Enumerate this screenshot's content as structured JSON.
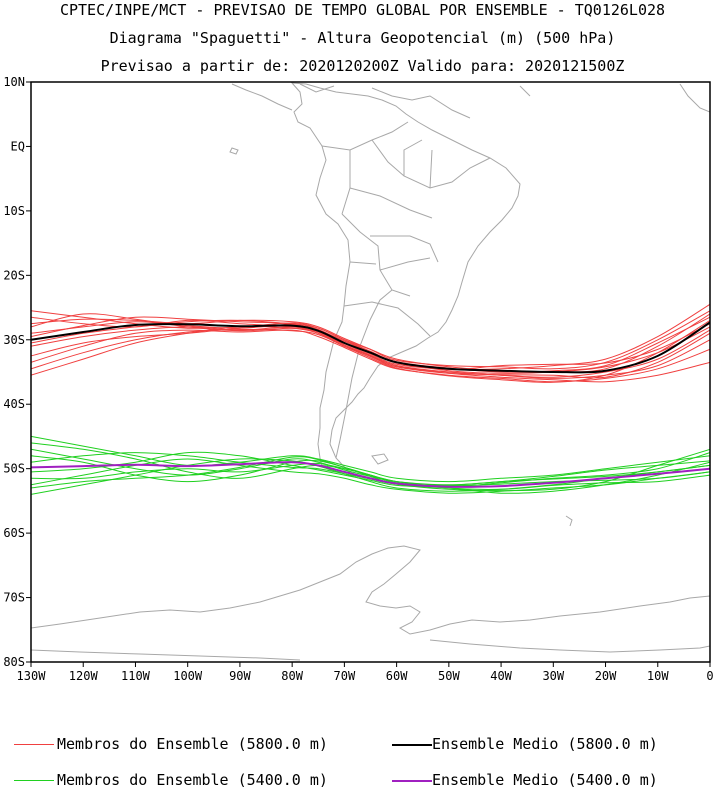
{
  "titles": {
    "line1": "CPTEC/INPE/MCT - PREVISAO DE TEMPO GLOBAL POR ENSEMBLE - TQ0126L028",
    "line2": "Diagrama \"Spaguetti\" - Altura Geopotencial (m) (500 hPa)",
    "line3": "Previsao a partir de: 2020120200Z  Valido para: 2020121500Z"
  },
  "legend": {
    "members_5800": "Membros do Ensemble (5800.0 m)",
    "mean_5800": "Ensemble Medio (5800.0 m)",
    "members_5400": "Membros do Ensemble (5400.0 m)",
    "mean_5400": "Ensemble Medio (5400.0 m)"
  },
  "colors": {
    "members_5800": "#f04040",
    "mean_5800": "#000000",
    "members_5400": "#20d020",
    "mean_5400": "#a020c0",
    "coast": "#a8a8a8",
    "frame": "#000000"
  },
  "chart_data": {
    "type": "line",
    "title": "Diagrama \"Spaguetti\" - Altura Geopotencial (m) (500 hPa)",
    "xlabel": "Longitude",
    "ylabel": "Latitude",
    "xlim": [
      -130,
      0
    ],
    "ylim": [
      -80,
      10
    ],
    "x_ticks": [
      -130,
      -120,
      -110,
      -100,
      -90,
      -80,
      -70,
      -60,
      -50,
      -40,
      -30,
      -20,
      -10,
      0
    ],
    "x_tick_labels": [
      "130W",
      "120W",
      "110W",
      "100W",
      "90W",
      "80W",
      "70W",
      "60W",
      "50W",
      "40W",
      "30W",
      "20W",
      "10W",
      "0"
    ],
    "y_ticks": [
      10,
      0,
      -10,
      -20,
      -30,
      -40,
      -50,
      -60,
      -70,
      -80
    ],
    "y_tick_labels": [
      "10N",
      "EQ",
      "10S",
      "20S",
      "30S",
      "40S",
      "50S",
      "60S",
      "70S",
      "80S"
    ],
    "x": [
      -130,
      -120,
      -110,
      -100,
      -90,
      -80,
      -75,
      -70,
      -65,
      -60,
      -50,
      -40,
      -30,
      -20,
      -10,
      0
    ],
    "series": [
      {
        "name": "Ensemble Medio (5800.0 m)",
        "group": "mean_5800",
        "values": [
          -30.0,
          -28.8,
          -27.7,
          -27.6,
          -27.9,
          -27.8,
          -28.6,
          -30.5,
          -32.0,
          -33.5,
          -34.5,
          -34.8,
          -35.0,
          -34.8,
          -32.5,
          -27.3
        ]
      },
      {
        "name": "Membro 1 (5800.0 m)",
        "group": "members_5800",
        "values": [
          -29.5,
          -27.8,
          -26.5,
          -26.8,
          -27.2,
          -27.5,
          -28.2,
          -30.0,
          -31.5,
          -33.0,
          -34.2,
          -34.8,
          -35.0,
          -34.5,
          -31.0,
          -26.0
        ]
      },
      {
        "name": "Membro 2 (5800.0 m)",
        "group": "members_5800",
        "values": [
          -31.0,
          -29.5,
          -28.5,
          -28.0,
          -28.5,
          -28.0,
          -29.0,
          -31.0,
          -32.5,
          -34.0,
          -35.0,
          -35.5,
          -35.8,
          -35.0,
          -33.0,
          -28.5
        ]
      },
      {
        "name": "Membro 3 (5800.0 m)",
        "group": "members_5800",
        "values": [
          -27.5,
          -26.8,
          -27.0,
          -27.5,
          -27.0,
          -27.2,
          -28.0,
          -29.8,
          -31.5,
          -33.2,
          -34.0,
          -34.2,
          -34.5,
          -33.5,
          -30.0,
          -25.5
        ]
      },
      {
        "name": "Membro 4 (5800.0 m)",
        "group": "members_5800",
        "values": [
          -33.5,
          -31.0,
          -29.0,
          -28.5,
          -28.8,
          -28.5,
          -29.5,
          -31.2,
          -33.0,
          -34.5,
          -35.5,
          -36.0,
          -36.5,
          -36.0,
          -34.5,
          -31.5
        ]
      },
      {
        "name": "Membro 5 (5800.0 m)",
        "group": "members_5800",
        "values": [
          -26.5,
          -27.5,
          -28.0,
          -27.0,
          -27.5,
          -28.0,
          -28.5,
          -30.2,
          -32.0,
          -33.5,
          -34.8,
          -35.2,
          -35.0,
          -34.2,
          -32.0,
          -28.0
        ]
      },
      {
        "name": "Membro 6 (5800.0 m)",
        "group": "members_5800",
        "values": [
          -29.0,
          -28.0,
          -27.2,
          -27.8,
          -28.2,
          -27.6,
          -28.4,
          -30.4,
          -32.2,
          -33.8,
          -34.6,
          -34.5,
          -34.0,
          -33.0,
          -29.5,
          -24.5
        ]
      },
      {
        "name": "Membro 7 (5800.0 m)",
        "group": "members_5800",
        "values": [
          -35.5,
          -33.0,
          -30.5,
          -29.0,
          -28.0,
          -28.2,
          -29.0,
          -30.8,
          -32.5,
          -34.2,
          -35.0,
          -35.5,
          -36.0,
          -35.5,
          -34.0,
          -30.0
        ]
      },
      {
        "name": "Membro 8 (5800.0 m)",
        "group": "members_5800",
        "values": [
          -28.0,
          -26.0,
          -26.8,
          -28.0,
          -28.6,
          -28.2,
          -28.8,
          -30.6,
          -32.4,
          -34.0,
          -35.2,
          -35.8,
          -36.2,
          -36.5,
          -35.5,
          -33.5
        ]
      },
      {
        "name": "Membro 9 (5800.0 m)",
        "group": "members_5800",
        "values": [
          -30.5,
          -29.0,
          -28.0,
          -27.2,
          -27.0,
          -27.6,
          -28.6,
          -30.2,
          -31.8,
          -33.4,
          -34.4,
          -35.0,
          -34.8,
          -34.0,
          -30.5,
          -26.5
        ]
      },
      {
        "name": "Membro 10 (5800.0 m)",
        "group": "members_5800",
        "values": [
          -32.5,
          -30.5,
          -29.5,
          -29.0,
          -28.2,
          -27.8,
          -28.8,
          -30.8,
          -32.6,
          -34.2,
          -35.2,
          -35.4,
          -35.5,
          -35.8,
          -33.5,
          -29.0
        ]
      },
      {
        "name": "Membro 11 (5800.0 m)",
        "group": "members_5800",
        "values": [
          -25.5,
          -26.5,
          -27.5,
          -28.2,
          -28.0,
          -27.4,
          -28.2,
          -30.0,
          -31.8,
          -33.6,
          -34.6,
          -34.0,
          -33.8,
          -33.6,
          -31.5,
          -27.5
        ]
      },
      {
        "name": "Membro 12 (5800.0 m)",
        "group": "members_5800",
        "values": [
          -34.5,
          -32.0,
          -30.0,
          -28.8,
          -28.4,
          -28.6,
          -29.2,
          -31.0,
          -32.8,
          -34.4,
          -35.6,
          -36.2,
          -36.6,
          -35.5,
          -32.0,
          -27.0
        ]
      },
      {
        "name": "Ensemble Medio (5400.0 m)",
        "group": "mean_5400",
        "values": [
          -49.8,
          -49.6,
          -49.4,
          -49.6,
          -49.3,
          -49.0,
          -49.5,
          -50.5,
          -51.5,
          -52.3,
          -52.8,
          -52.7,
          -52.2,
          -51.5,
          -50.8,
          -50.0
        ]
      },
      {
        "name": "Membro 1 (5400.0 m)",
        "group": "members_5400",
        "values": [
          -45.0,
          -46.5,
          -48.0,
          -49.5,
          -49.0,
          -48.0,
          -48.5,
          -49.5,
          -50.5,
          -51.5,
          -52.0,
          -51.5,
          -51.0,
          -50.0,
          -49.0,
          -48.0
        ]
      },
      {
        "name": "Membro 2 (5400.0 m)",
        "group": "members_5400",
        "values": [
          -54.0,
          -52.5,
          -51.0,
          -49.5,
          -48.5,
          -48.8,
          -49.6,
          -50.8,
          -52.0,
          -53.0,
          -53.5,
          -53.2,
          -52.5,
          -51.5,
          -50.5,
          -49.5
        ]
      },
      {
        "name": "Membro 3 (5400.0 m)",
        "group": "members_5400",
        "values": [
          -47.0,
          -48.5,
          -50.0,
          -51.0,
          -50.0,
          -48.5,
          -49.0,
          -50.2,
          -51.2,
          -52.0,
          -52.5,
          -52.0,
          -51.2,
          -50.2,
          -49.5,
          -48.8
        ]
      },
      {
        "name": "Membro 4 (5400.0 m)",
        "group": "members_5400",
        "values": [
          -52.5,
          -51.0,
          -49.5,
          -48.5,
          -49.5,
          -50.5,
          -50.8,
          -51.5,
          -52.5,
          -53.2,
          -53.8,
          -53.5,
          -53.0,
          -52.5,
          -51.5,
          -50.5
        ]
      },
      {
        "name": "Membro 5 (5400.0 m)",
        "group": "members_5400",
        "values": [
          -46.0,
          -47.0,
          -48.5,
          -50.5,
          -51.5,
          -50.0,
          -49.5,
          -50.0,
          -51.0,
          -52.2,
          -52.8,
          -52.2,
          -51.5,
          -51.0,
          -50.0,
          -47.5
        ]
      },
      {
        "name": "Membro 6 (5400.0 m)",
        "group": "members_5400",
        "values": [
          -50.5,
          -50.0,
          -49.0,
          -47.5,
          -48.0,
          -49.5,
          -50.2,
          -51.0,
          -51.8,
          -52.6,
          -53.0,
          -53.8,
          -53.5,
          -52.5,
          -51.0,
          -49.0
        ]
      },
      {
        "name": "Membro 7 (5400.0 m)",
        "group": "members_5400",
        "values": [
          -48.0,
          -49.0,
          -51.0,
          -52.0,
          -51.0,
          -49.0,
          -48.8,
          -49.8,
          -51.0,
          -52.0,
          -52.6,
          -52.4,
          -52.0,
          -51.8,
          -51.5,
          -50.5
        ]
      },
      {
        "name": "Membro 8 (5400.0 m)",
        "group": "members_5400",
        "values": [
          -53.0,
          -52.0,
          -51.5,
          -51.0,
          -49.8,
          -48.2,
          -48.6,
          -49.8,
          -51.2,
          -52.4,
          -53.2,
          -53.4,
          -53.2,
          -52.0,
          -49.5,
          -47.0
        ]
      },
      {
        "name": "Membro 9 (5400.0 m)",
        "group": "members_5400",
        "values": [
          -49.0,
          -48.0,
          -47.5,
          -48.0,
          -49.0,
          -49.8,
          -50.0,
          -50.8,
          -51.6,
          -52.4,
          -52.6,
          -52.0,
          -51.6,
          -51.2,
          -50.5,
          -49.5
        ]
      },
      {
        "name": "Membro 10 (5400.0 m)",
        "group": "members_5400",
        "values": [
          -51.5,
          -51.5,
          -50.5,
          -50.0,
          -50.5,
          -49.5,
          -49.2,
          -50.0,
          -51.0,
          -52.0,
          -53.0,
          -53.2,
          -52.6,
          -52.2,
          -52.0,
          -51.0
        ]
      }
    ]
  }
}
